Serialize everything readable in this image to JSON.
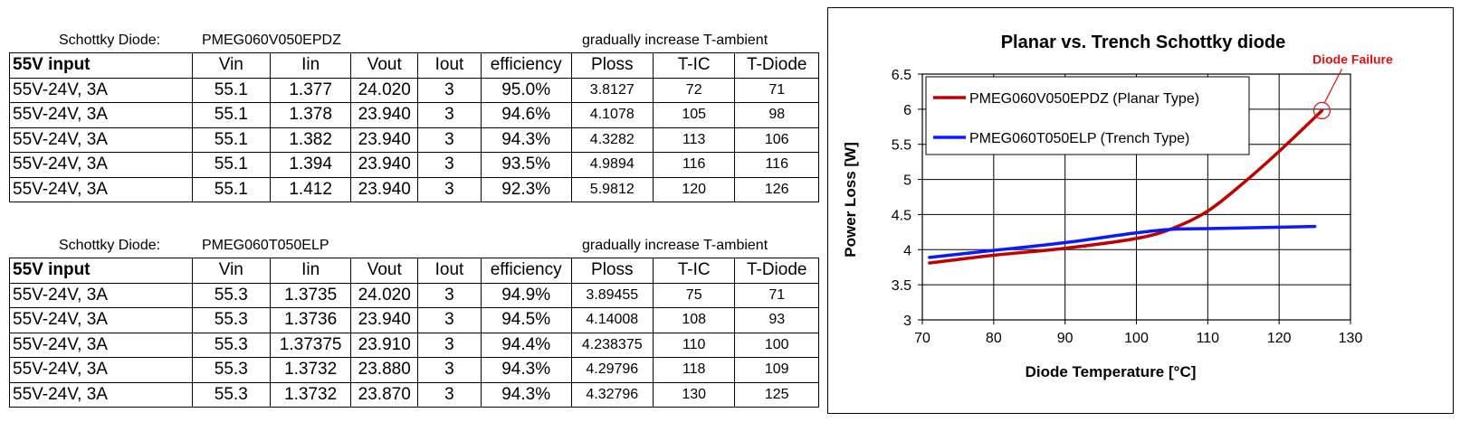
{
  "tables": [
    {
      "caption_label": "Schottky Diode:",
      "caption_part": "PMEG060V050EPDZ",
      "caption_note": "gradually increase T-ambient",
      "headers": [
        "55V input",
        "Vin",
        "Iin",
        "Vout",
        "Iout",
        "efficiency",
        "Ploss",
        "T-IC",
        "T-Diode"
      ],
      "rows": [
        [
          "55V-24V, 3A",
          "55.1",
          "1.377",
          "24.020",
          "3",
          "95.0%",
          "3.8127",
          "72",
          "71"
        ],
        [
          "55V-24V, 3A",
          "55.1",
          "1.378",
          "23.940",
          "3",
          "94.6%",
          "4.1078",
          "105",
          "98"
        ],
        [
          "55V-24V, 3A",
          "55.1",
          "1.382",
          "23.940",
          "3",
          "94.3%",
          "4.3282",
          "113",
          "106"
        ],
        [
          "55V-24V, 3A",
          "55.1",
          "1.394",
          "23.940",
          "3",
          "93.5%",
          "4.9894",
          "116",
          "116"
        ],
        [
          "55V-24V, 3A",
          "55.1",
          "1.412",
          "23.940",
          "3",
          "92.3%",
          "5.9812",
          "120",
          "126"
        ]
      ]
    },
    {
      "caption_label": "Schottky Diode:",
      "caption_part": "PMEG060T050ELP",
      "caption_note": "gradually increase T-ambient",
      "headers": [
        "55V input",
        "Vin",
        "Iin",
        "Vout",
        "Iout",
        "efficiency",
        "Ploss",
        "T-IC",
        "T-Diode"
      ],
      "rows": [
        [
          "55V-24V, 3A",
          "55.3",
          "1.3735",
          "24.020",
          "3",
          "94.9%",
          "3.89455",
          "75",
          "71"
        ],
        [
          "55V-24V, 3A",
          "55.3",
          "1.3736",
          "23.940",
          "3",
          "94.5%",
          "4.14008",
          "108",
          "93"
        ],
        [
          "55V-24V, 3A",
          "55.3",
          "1.37375",
          "23.910",
          "3",
          "94.4%",
          "4.238375",
          "110",
          "100"
        ],
        [
          "55V-24V, 3A",
          "55.3",
          "1.3732",
          "23.880",
          "3",
          "94.3%",
          "4.29796",
          "118",
          "109"
        ],
        [
          "55V-24V, 3A",
          "55.3",
          "1.3732",
          "23.870",
          "3",
          "94.3%",
          "4.32796",
          "130",
          "125"
        ]
      ]
    }
  ],
  "chart_data": {
    "type": "line",
    "title": "Planar vs. Trench Schottky diode",
    "xlabel": "Diode Temperature [°C]",
    "ylabel": "Power Loss [W]",
    "xlim": [
      70,
      130
    ],
    "ylim": [
      3,
      6.5
    ],
    "xticks": [
      "70",
      "80",
      "90",
      "100",
      "110",
      "120",
      "130"
    ],
    "yticks": [
      "3",
      "3.5",
      "4",
      "4.5",
      "5",
      "5.5",
      "6",
      "6.5"
    ],
    "grid": true,
    "legend_position": "top-left",
    "series": [
      {
        "name": "PMEG060V050EPDZ (Planar Type)",
        "color": "#c00000",
        "x": [
          71,
          80,
          90,
          100,
          105,
          110,
          115,
          120,
          126
        ],
        "y": [
          3.81,
          3.92,
          4.02,
          4.16,
          4.3,
          4.55,
          4.95,
          5.4,
          5.98
        ]
      },
      {
        "name": "PMEG060T050ELP (Trench Type)",
        "color": "#0a1aff",
        "x": [
          71,
          80,
          90,
          100,
          105,
          110,
          125
        ],
        "y": [
          3.89,
          3.99,
          4.1,
          4.24,
          4.29,
          4.3,
          4.33
        ]
      }
    ],
    "annotation": {
      "text": "Diode Failure",
      "x": 126,
      "y": 5.98,
      "color": "#e01010"
    }
  }
}
